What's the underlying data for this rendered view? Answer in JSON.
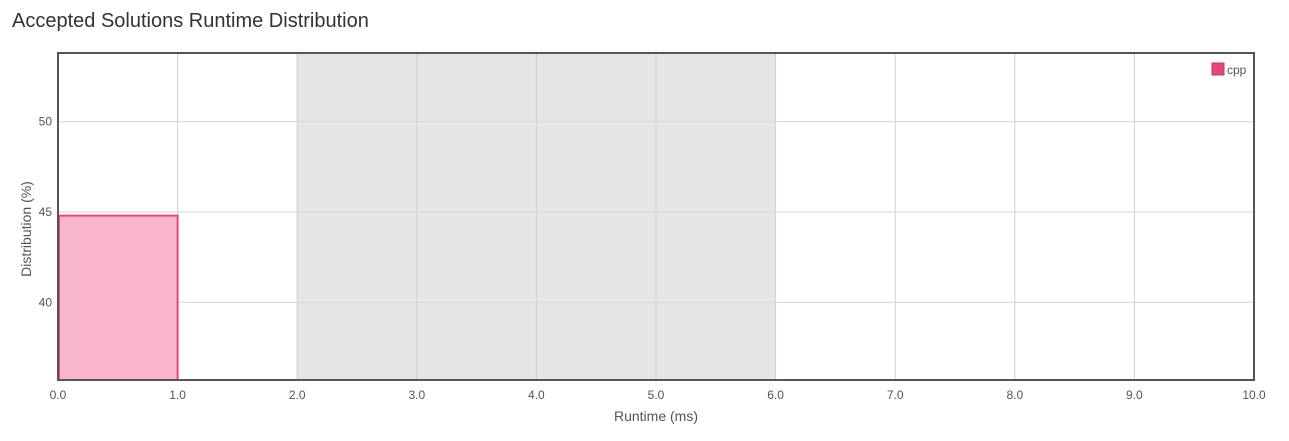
{
  "page": {
    "title": "Accepted Solutions Runtime Distribution"
  },
  "chart_data": {
    "type": "bar",
    "title": "Accepted Solutions Runtime Distribution",
    "xlabel": "Runtime (ms)",
    "ylabel": "Distribution (%)",
    "xlim": [
      0,
      10
    ],
    "ylim": [
      35.7,
      53.8
    ],
    "x_ticks": [
      "0.0",
      "1.0",
      "2.0",
      "3.0",
      "4.0",
      "5.0",
      "6.0",
      "7.0",
      "8.0",
      "9.0",
      "10.0"
    ],
    "y_ticks": [
      "40",
      "45",
      "50"
    ],
    "highlight_band": [
      2,
      6
    ],
    "grid": true,
    "legend": {
      "position": "top-right"
    },
    "series": [
      {
        "name": "cpp",
        "color": "#e8457a",
        "fill": "#f9b5cb",
        "bars": [
          {
            "x0": 0,
            "x1": 1,
            "value": 44.8
          }
        ]
      }
    ]
  }
}
